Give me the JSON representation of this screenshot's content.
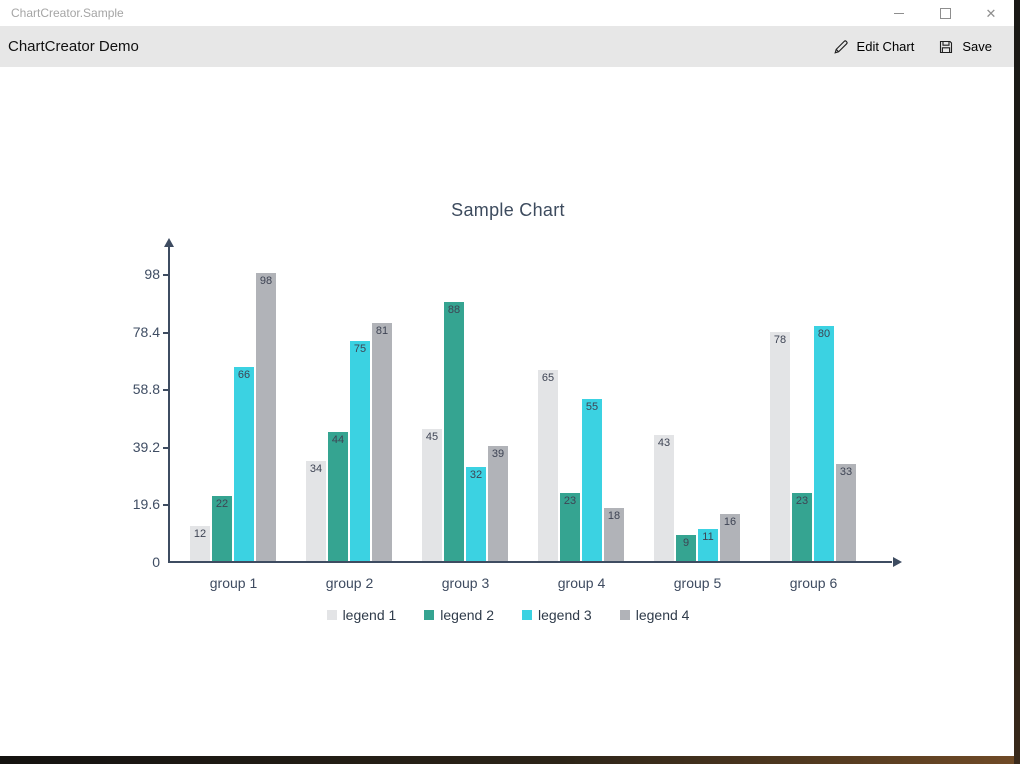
{
  "titlebar": {
    "title": "ChartCreator.Sample",
    "close_glyph": "✕"
  },
  "toolbar": {
    "title": "ChartCreator Demo",
    "edit_chart_label": "Edit Chart",
    "save_label": "Save"
  },
  "chart_data": {
    "type": "bar",
    "title": "Sample Chart",
    "categories": [
      "group 1",
      "group 2",
      "group 3",
      "group 4",
      "group 5",
      "group 6"
    ],
    "series": [
      {
        "name": "legend 1",
        "color": "#e3e4e6",
        "values": [
          12,
          34,
          45,
          65,
          43,
          78
        ]
      },
      {
        "name": "legend 2",
        "color": "#35a491",
        "values": [
          22,
          44,
          88,
          23,
          9,
          23
        ]
      },
      {
        "name": "legend 3",
        "color": "#3bd2e2",
        "values": [
          66,
          75,
          32,
          55,
          11,
          80
        ]
      },
      {
        "name": "legend 4",
        "color": "#b1b3b8",
        "values": [
          98,
          81,
          39,
          18,
          16,
          33
        ]
      }
    ],
    "ylim": [
      0,
      98
    ],
    "yticks": [
      0,
      19.6,
      39.2,
      58.8,
      78.4,
      98
    ],
    "bar_labels": true,
    "grid": false,
    "legend_position": "bottom",
    "axis_color": "#3e4c61",
    "label_color": "#3e4454"
  }
}
